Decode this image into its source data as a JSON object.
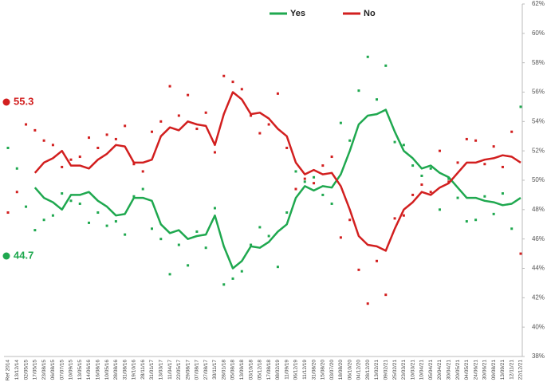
{
  "chart_data": {
    "type": "line",
    "categories": [
      "Ref 2014",
      "13/12/14",
      "02/05/15",
      "17/05/15",
      "23/08/15",
      "06/08/15",
      "07/07/15",
      "10/09/15",
      "13/05/15",
      "14/06/16",
      "16/08/16",
      "10/05/16",
      "28/08/16",
      "31/08/16",
      "19/10/16",
      "28/11/16",
      "31/01/17",
      "13/03/17",
      "11/04/17",
      "22/05/17",
      "29/08/17",
      "07/08/17",
      "27/08/17",
      "30/11/17",
      "28/01/18",
      "05/08/18",
      "13/09/18",
      "03/10/18",
      "05/12/18",
      "17/08/18",
      "08/02/19",
      "11/09/19",
      "06/12/19",
      "11/12/19",
      "31/08/20",
      "15/08/20",
      "03/07/20",
      "18/08/20",
      "06/10/20",
      "04/12/20",
      "28/12/20",
      "13/02/21",
      "09/02/21",
      "25/02/21",
      "23/03/21",
      "10/03/21",
      "10/04/21",
      "05/04/21",
      "20/04/21",
      "30/04/21",
      "20/05/21",
      "04/05/21",
      "24/06/21",
      "30/06/21",
      "09/08/21",
      "13/09/21",
      "12/11/21",
      "22/12/21"
    ],
    "series": [
      {
        "name": "Yes",
        "color": "#1fa84f",
        "latest": 44.7,
        "values": [
          null,
          null,
          null,
          49.5,
          48.8,
          48.5,
          48.0,
          49.0,
          49.0,
          49.2,
          48.6,
          48.2,
          47.6,
          47.7,
          48.8,
          48.8,
          48.6,
          47.0,
          46.4,
          46.6,
          46.0,
          46.2,
          46.3,
          47.6,
          45.5,
          44.0,
          44.5,
          45.5,
          45.4,
          45.8,
          46.5,
          47.0,
          48.8,
          49.6,
          49.3,
          49.6,
          49.5,
          50.4,
          52.0,
          53.8,
          54.4,
          54.5,
          54.8,
          53.3,
          52.0,
          51.5,
          50.8,
          51.0,
          50.5,
          50.2,
          49.5,
          48.8,
          48.8,
          48.6,
          48.5,
          48.3,
          48.4,
          48.8
        ],
        "polls": [
          52.2,
          50.8,
          48.2,
          46.6,
          47.3,
          47.6,
          49.1,
          48.6,
          48.4,
          47.1,
          47.8,
          46.9,
          47.2,
          46.3,
          48.9,
          49.4,
          46.7,
          46.0,
          43.6,
          45.6,
          44.2,
          46.5,
          45.4,
          48.1,
          42.9,
          43.3,
          43.8,
          45.6,
          46.8,
          46.2,
          44.1,
          47.8,
          50.6,
          49.9,
          50.2,
          49.0,
          48.4,
          53.9,
          52.7,
          56.1,
          58.4,
          55.5,
          57.8,
          52.6,
          52.4,
          51.0,
          50.3,
          50.8,
          48.0,
          50.1,
          48.8,
          47.2,
          47.3,
          48.9,
          47.7,
          49.1,
          46.7,
          55.0
        ]
      },
      {
        "name": "No",
        "color": "#d21f1f",
        "latest": 55.3,
        "values": [
          null,
          null,
          null,
          50.5,
          51.2,
          51.5,
          52.0,
          51.0,
          51.0,
          50.8,
          51.4,
          51.8,
          52.4,
          52.3,
          51.2,
          51.2,
          51.4,
          53.0,
          53.6,
          53.4,
          54.0,
          53.8,
          53.7,
          52.4,
          54.5,
          56.0,
          55.5,
          54.5,
          54.6,
          54.2,
          53.5,
          53.0,
          51.2,
          50.4,
          50.7,
          50.4,
          50.5,
          49.6,
          48.0,
          46.2,
          45.6,
          45.5,
          45.2,
          46.7,
          48.0,
          48.5,
          49.2,
          49.0,
          49.5,
          49.8,
          50.5,
          51.2,
          51.2,
          51.4,
          51.5,
          51.7,
          51.6,
          51.2
        ],
        "polls": [
          47.8,
          49.2,
          53.8,
          53.4,
          52.7,
          52.4,
          50.9,
          51.4,
          51.6,
          52.9,
          52.2,
          53.1,
          52.8,
          53.7,
          51.1,
          50.6,
          53.3,
          54.0,
          56.4,
          54.4,
          55.8,
          53.5,
          54.6,
          51.9,
          57.1,
          56.7,
          56.2,
          54.4,
          53.2,
          53.8,
          55.9,
          52.2,
          49.4,
          50.1,
          49.8,
          51.0,
          51.6,
          46.1,
          47.3,
          43.9,
          41.6,
          44.5,
          42.2,
          47.4,
          47.6,
          49.0,
          49.7,
          49.2,
          52.0,
          49.9,
          51.2,
          52.8,
          52.7,
          51.1,
          52.3,
          50.9,
          53.3,
          45.0
        ]
      }
    ],
    "ylim": [
      38,
      62
    ],
    "yticks": [
      {
        "value": 38,
        "label": "38%"
      },
      {
        "value": 40,
        "label": "40%"
      },
      {
        "value": 42,
        "label": "42%"
      },
      {
        "value": 44,
        "label": "44%"
      },
      {
        "value": 46,
        "label": "46%"
      },
      {
        "value": 48,
        "label": "48%"
      },
      {
        "value": 50,
        "label": "50%"
      },
      {
        "value": 52,
        "label": "52%"
      },
      {
        "value": 54,
        "label": "54%"
      },
      {
        "value": 56,
        "label": "56%"
      },
      {
        "value": 58,
        "label": "58%"
      },
      {
        "value": 60,
        "label": "60%"
      },
      {
        "value": 62,
        "label": "62%"
      }
    ],
    "legend": "top",
    "grid": false
  }
}
